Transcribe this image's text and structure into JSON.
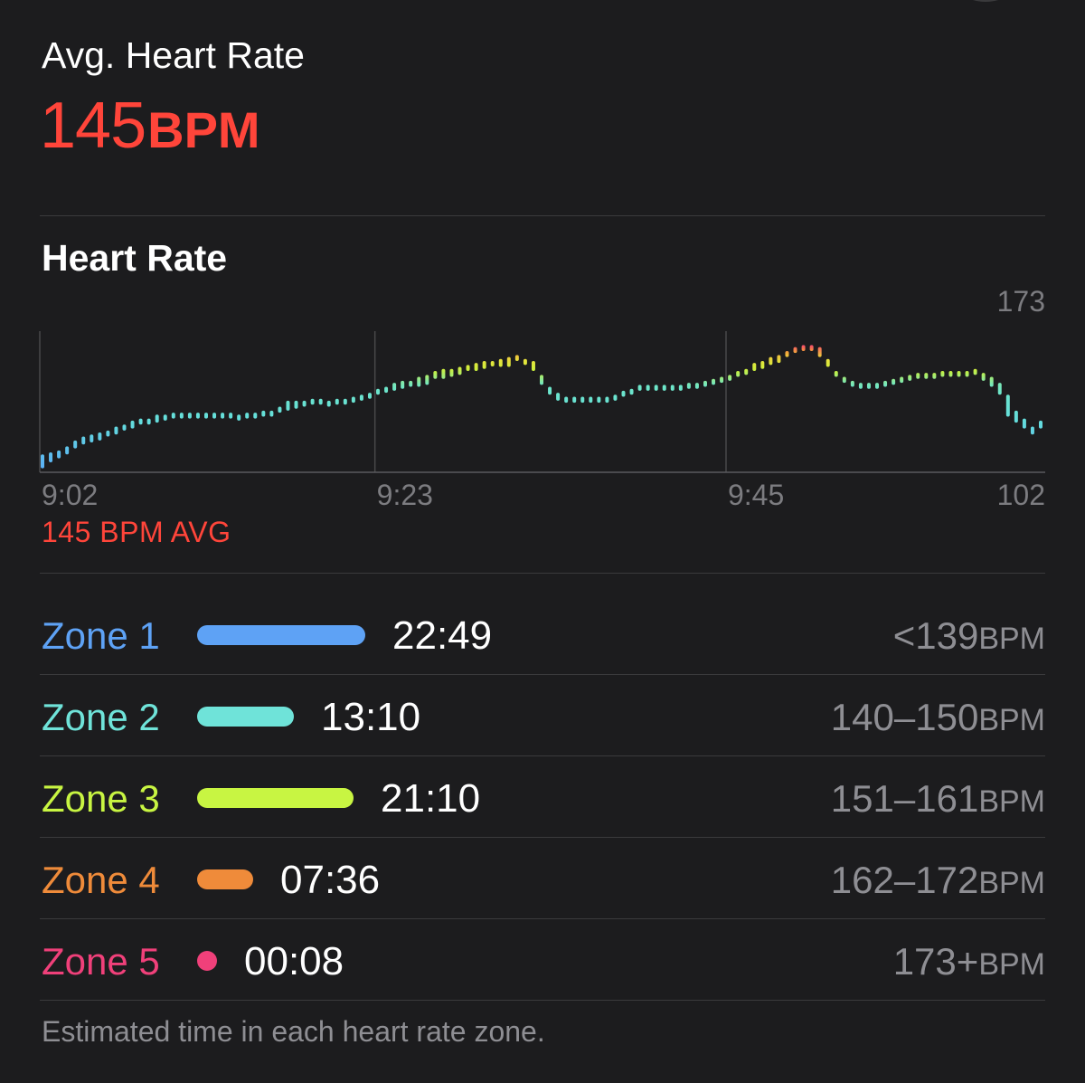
{
  "summary": {
    "label": "Avg. Heart Rate",
    "value": "145",
    "unit": "BPM"
  },
  "chart_section": {
    "title": "Heart Rate",
    "avg_caption": "145 BPM AVG"
  },
  "chart_data": {
    "type": "range-bar",
    "title": "Heart Rate",
    "y_unit": "BPM",
    "ylim": [
      102,
      173
    ],
    "y_tick_labels": [
      "173",
      "102"
    ],
    "x_tick_labels": [
      "9:02",
      "9:23",
      "9:45"
    ],
    "start_minute": 0,
    "end_minute": 63,
    "x_tick_minutes": [
      0,
      21,
      43
    ],
    "average": 145,
    "samples": [
      [
        104,
        111
      ],
      [
        107,
        112
      ],
      [
        109,
        113
      ],
      [
        111,
        115
      ],
      [
        114,
        118
      ],
      [
        116,
        120
      ],
      [
        117,
        121
      ],
      [
        118,
        122
      ],
      [
        120,
        123
      ],
      [
        121,
        125
      ],
      [
        123,
        126
      ],
      [
        124,
        128
      ],
      [
        126,
        129
      ],
      [
        126,
        129
      ],
      [
        127,
        131
      ],
      [
        128,
        131
      ],
      [
        129,
        132
      ],
      [
        129,
        132
      ],
      [
        129,
        132
      ],
      [
        129,
        132
      ],
      [
        129,
        132
      ],
      [
        129,
        132
      ],
      [
        129,
        132
      ],
      [
        129,
        132
      ],
      [
        128,
        131
      ],
      [
        129,
        132
      ],
      [
        129,
        132
      ],
      [
        130,
        133
      ],
      [
        130,
        133
      ],
      [
        132,
        135
      ],
      [
        133,
        138
      ],
      [
        134,
        138
      ],
      [
        135,
        138
      ],
      [
        136,
        139
      ],
      [
        136,
        139
      ],
      [
        135,
        138
      ],
      [
        136,
        139
      ],
      [
        136,
        139
      ],
      [
        137,
        140
      ],
      [
        138,
        141
      ],
      [
        139,
        142
      ],
      [
        141,
        144
      ],
      [
        142,
        145
      ],
      [
        143,
        147
      ],
      [
        144,
        148
      ],
      [
        145,
        148
      ],
      [
        145,
        150
      ],
      [
        146,
        151
      ],
      [
        149,
        153
      ],
      [
        149,
        154
      ],
      [
        150,
        154
      ],
      [
        151,
        155
      ],
      [
        153,
        156
      ],
      [
        153,
        157
      ],
      [
        154,
        158
      ],
      [
        156,
        158
      ],
      [
        155,
        159
      ],
      [
        155,
        160
      ],
      [
        158,
        161
      ],
      [
        156,
        159
      ],
      [
        153,
        158
      ],
      [
        146,
        151
      ],
      [
        141,
        145
      ],
      [
        138,
        142
      ],
      [
        137,
        140
      ],
      [
        137,
        140
      ],
      [
        137,
        140
      ],
      [
        137,
        140
      ],
      [
        137,
        140
      ],
      [
        137,
        140
      ],
      [
        138,
        141
      ],
      [
        140,
        143
      ],
      [
        141,
        144
      ],
      [
        143,
        146
      ],
      [
        143,
        146
      ],
      [
        143,
        146
      ],
      [
        143,
        146
      ],
      [
        143,
        146
      ],
      [
        143,
        146
      ],
      [
        144,
        147
      ],
      [
        144,
        147
      ],
      [
        145,
        148
      ],
      [
        146,
        149
      ],
      [
        147,
        150
      ],
      [
        148,
        151
      ],
      [
        150,
        153
      ],
      [
        151,
        154
      ],
      [
        153,
        157
      ],
      [
        154,
        158
      ],
      [
        156,
        160
      ],
      [
        157,
        161
      ],
      [
        160,
        163
      ],
      [
        162,
        165
      ],
      [
        163,
        166
      ],
      [
        163,
        166
      ],
      [
        160,
        165
      ],
      [
        155,
        159
      ],
      [
        150,
        153
      ],
      [
        147,
        150
      ],
      [
        145,
        148
      ],
      [
        144,
        147
      ],
      [
        144,
        147
      ],
      [
        144,
        147
      ],
      [
        145,
        148
      ],
      [
        146,
        149
      ],
      [
        147,
        150
      ],
      [
        148,
        151
      ],
      [
        149,
        152
      ],
      [
        149,
        152
      ],
      [
        149,
        152
      ],
      [
        150,
        153
      ],
      [
        150,
        153
      ],
      [
        150,
        153
      ],
      [
        150,
        153
      ],
      [
        151,
        154
      ],
      [
        148,
        152
      ],
      [
        145,
        150
      ],
      [
        141,
        147
      ],
      [
        130,
        141
      ],
      [
        127,
        133
      ],
      [
        124,
        129
      ],
      [
        121,
        125
      ],
      [
        124,
        128
      ]
    ]
  },
  "zones": [
    {
      "label": "Zone 1",
      "time": "22:49",
      "range": "<139",
      "unit": "BPM",
      "minutes": 22.82,
      "color": "#5ea2f5"
    },
    {
      "label": "Zone 2",
      "time": "13:10",
      "range": "140–150",
      "unit": "BPM",
      "minutes": 13.17,
      "color": "#6fe3d9"
    },
    {
      "label": "Zone 3",
      "time": "21:10",
      "range": "151–161",
      "unit": "BPM",
      "minutes": 21.17,
      "color": "#c8f542"
    },
    {
      "label": "Zone 4",
      "time": "07:36",
      "range": "162–172",
      "unit": "BPM",
      "minutes": 7.6,
      "color": "#ef8b3a"
    },
    {
      "label": "Zone 5",
      "time": "00:08",
      "range": "173+",
      "unit": "BPM",
      "minutes": 0.13,
      "color": "#f0407a"
    }
  ],
  "footnote": "Estimated time in each heart rate zone."
}
